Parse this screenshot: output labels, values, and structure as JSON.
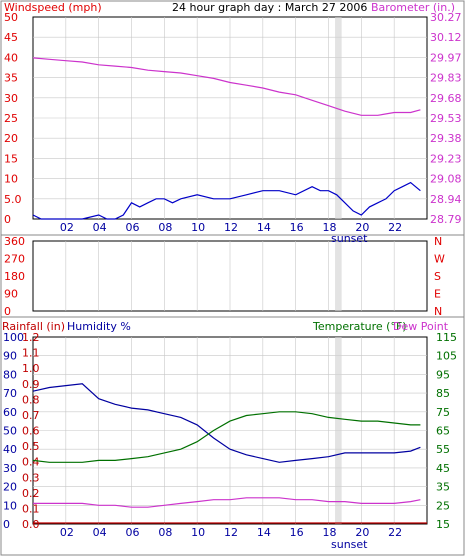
{
  "colors": {
    "wind": "#e00000",
    "wind_avg": "#0000c8",
    "gust_low": "#008000",
    "baro": "#cc33cc",
    "dir": "#e00000",
    "rain": "#c00000",
    "humidity": "#0000a0",
    "temp": "#007000",
    "dew": "#cc33cc",
    "grid": "#c8c8c8",
    "sunset": "#d0d0d0"
  },
  "chart_data": [
    {
      "type": "line",
      "title": "24 hour graph day : March 27 2006",
      "ylabel_left": "Windspeed (mph)",
      "ylabel_right": "Barometer (in.)",
      "xlabel": "sunset",
      "x_ticks": [
        "02",
        "04",
        "06",
        "08",
        "10",
        "12",
        "14",
        "16",
        "18",
        "20",
        "22"
      ],
      "y_ticks_left": [
        "50",
        "45",
        "40",
        "35",
        "30",
        "25",
        "20",
        "15",
        "10",
        "5.0",
        "0"
      ],
      "y_ticks_right": [
        "30.27",
        "30.12",
        "29.97",
        "29.83",
        "29.68",
        "29.53",
        "29.38",
        "29.23",
        "29.08",
        "28.94",
        "28.79"
      ],
      "ylim_left": [
        0,
        50
      ],
      "ylim_right": [
        28.79,
        30.27
      ],
      "grid": true,
      "series": [
        {
          "values_hours": [
            0,
            1,
            2,
            3,
            4,
            5,
            6,
            7,
            8,
            9,
            10,
            11,
            12,
            13,
            14,
            15,
            16,
            17,
            18,
            19,
            20,
            21,
            22,
            23,
            23.6
          ],
          "values": [
            29.97,
            29.96,
            29.95,
            29.94,
            29.92,
            29.91,
            29.9,
            29.88,
            29.87,
            29.86,
            29.84,
            29.82,
            29.79,
            29.77,
            29.75,
            29.72,
            29.7,
            29.66,
            29.62,
            29.58,
            29.55,
            29.55,
            29.57,
            29.57,
            29.59
          ]
        },
        {
          "values_hours": [
            0,
            0.5,
            1,
            2,
            3,
            4,
            4.5,
            5,
            5.5,
            6,
            6.5,
            7,
            7.5,
            8,
            8.5,
            9,
            10,
            11,
            12,
            13,
            14,
            15,
            16,
            17,
            17.5,
            18,
            18.5,
            19,
            19.5,
            20,
            20.5,
            21,
            21.5,
            22,
            22.5,
            23,
            23.6
          ],
          "values": [
            1,
            0,
            0,
            0,
            0,
            1,
            0,
            0,
            1,
            4,
            3,
            4,
            5,
            5,
            4,
            5,
            6,
            5,
            5,
            6,
            7,
            7,
            6,
            8,
            7,
            7,
            6,
            4,
            2,
            1,
            3,
            4,
            5,
            7,
            8,
            9,
            7
          ]
        }
      ]
    },
    {
      "type": "scatter",
      "ylabel_right": [
        "N",
        "W",
        "S",
        "E",
        "N"
      ],
      "y_ticks_left": [
        "360",
        "270",
        "180",
        "90",
        "0"
      ],
      "ylim": [
        0,
        360
      ],
      "series": []
    },
    {
      "type": "line",
      "ylabel_left": "Rainfall (in)",
      "ylabel_left2": "Humidity %",
      "ylabel_right": "Temperature (°F)",
      "ylabel_right2": "Dew Point",
      "xlabel": "sunset",
      "x_ticks": [
        "02",
        "04",
        "06",
        "08",
        "10",
        "12",
        "14",
        "16",
        "18",
        "20",
        "22"
      ],
      "y_ticks_rain": [
        "1.2",
        "1.1",
        "1.0",
        "0.9",
        "0.8",
        "0.7",
        "0.6",
        "0.5",
        "0.4",
        "0.3",
        "0.2",
        "0.1",
        "0.0"
      ],
      "y_ticks_hum": [
        "100",
        "90",
        "80",
        "70",
        "60",
        "50",
        "40",
        "30",
        "20",
        "10",
        "0"
      ],
      "y_ticks_temp": [
        "115",
        "105",
        "95",
        "85",
        "75",
        "65",
        "55",
        "45",
        "35",
        "25",
        "15"
      ],
      "ylim_hum": [
        0,
        100
      ],
      "ylim_temp": [
        15,
        115
      ],
      "grid": true,
      "series": [
        {
          "name": "Humidity %",
          "values_hours": [
            0,
            1,
            2,
            3,
            4,
            5,
            6,
            7,
            8,
            9,
            10,
            11,
            12,
            13,
            14,
            15,
            16,
            17,
            18,
            19,
            20,
            21,
            22,
            23,
            23.6
          ],
          "values": [
            71,
            73,
            74,
            75,
            67,
            64,
            62,
            61,
            59,
            57,
            53,
            46,
            40,
            37,
            35,
            33,
            34,
            35,
            36,
            38,
            38,
            38,
            38,
            39,
            41
          ]
        },
        {
          "name": "Temperature (°F)",
          "values_hours": [
            0,
            1,
            2,
            3,
            4,
            5,
            6,
            7,
            8,
            9,
            10,
            11,
            12,
            13,
            14,
            15,
            16,
            17,
            18,
            19,
            20,
            21,
            22,
            23,
            23.6
          ],
          "values": [
            49,
            48,
            48,
            48,
            49,
            49,
            50,
            51,
            53,
            55,
            59,
            65,
            70,
            73,
            74,
            75,
            75,
            74,
            72,
            71,
            70,
            70,
            69,
            68,
            68
          ]
        },
        {
          "name": "Dew Point",
          "values_hours": [
            0,
            1,
            2,
            3,
            4,
            5,
            6,
            7,
            8,
            9,
            10,
            11,
            12,
            13,
            14,
            15,
            16,
            17,
            18,
            19,
            20,
            21,
            22,
            23,
            23.6
          ],
          "values": [
            26,
            26,
            26,
            26,
            25,
            25,
            24,
            24,
            25,
            26,
            27,
            28,
            28,
            29,
            29,
            29,
            28,
            28,
            27,
            27,
            26,
            26,
            26,
            27,
            28
          ]
        },
        {
          "name": "Rainfall (in)",
          "values_hours": [
            0,
            23.6
          ],
          "values": [
            0.0,
            0.0
          ]
        }
      ]
    }
  ]
}
